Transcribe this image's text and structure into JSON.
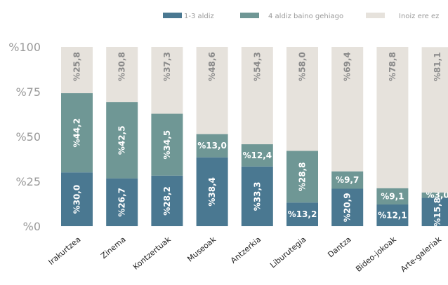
{
  "chart_data": {
    "type": "bar",
    "stacked": true,
    "title": "",
    "xlabel": "",
    "ylabel": "",
    "ylim": [
      0,
      100
    ],
    "yticks": [
      "%0",
      "%25",
      "%50",
      "%75",
      "%100"
    ],
    "categories": [
      "Irakurtzea",
      "Zinema",
      "Kontzertuak",
      "Museoak",
      "Antzerkia",
      "Liburutegia",
      "Dantza",
      "Bideo-jokoak",
      "Arte-galeriak"
    ],
    "series": [
      {
        "name": "1-3 aldiz",
        "color": "#4a7891",
        "values": [
          30.0,
          26.7,
          28.2,
          38.4,
          33.3,
          13.2,
          20.9,
          12.1,
          15.8
        ],
        "labels": [
          "%30,0",
          "%26,7",
          "%28,2",
          "%38,4",
          "%33,3",
          "%13,2",
          "%20,9",
          "%12,1",
          "%15,8"
        ]
      },
      {
        "name": "4 aldiz baino gehiago",
        "color": "#6f9795",
        "values": [
          44.2,
          42.5,
          34.5,
          13.0,
          12.4,
          28.8,
          9.7,
          9.1,
          3.0
        ],
        "labels": [
          "%44,2",
          "%42,5",
          "%34,5",
          "%13,0",
          "%12,4",
          "%28,8",
          "%9,7",
          "%9,1",
          "%3,0"
        ]
      },
      {
        "name": "Inoiz ere ez",
        "color": "#e6e2dc",
        "values": [
          25.8,
          30.8,
          37.3,
          48.6,
          54.3,
          58.0,
          69.4,
          78.8,
          81.1
        ],
        "labels": [
          "%25,8",
          "%30,8",
          "%37,3",
          "%48,6",
          "%54,3",
          "%58,0",
          "%69,4",
          "%78,8",
          "%81,1"
        ]
      }
    ],
    "legend_position": "top-right",
    "grid": false
  }
}
